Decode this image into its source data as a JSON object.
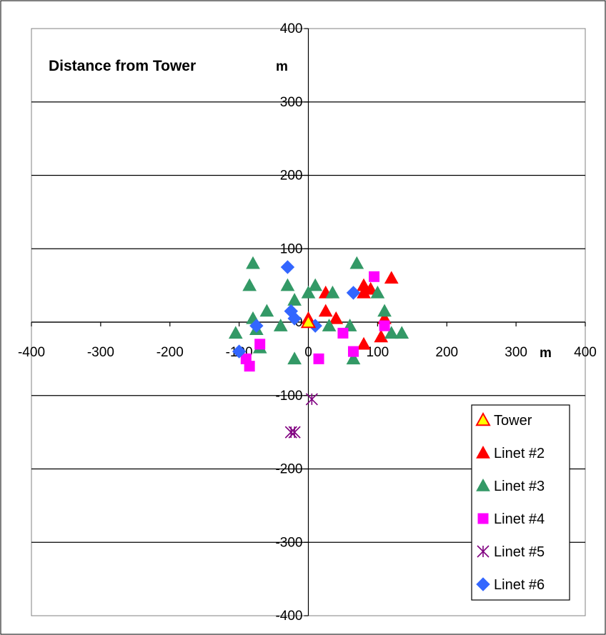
{
  "chart_data": {
    "type": "scatter",
    "title": "Distance from Tower",
    "xlabel": "m",
    "ylabel": "m",
    "xlim": [
      -400,
      400
    ],
    "ylim": [
      -400,
      400
    ],
    "x_ticks": [
      -400,
      -300,
      -200,
      -100,
      0,
      100,
      200,
      300,
      400
    ],
    "x_tick_labels": [
      "-400",
      "-300",
      "-200",
      "-100",
      "0",
      "100",
      "200",
      "300",
      "400"
    ],
    "y_ticks": [
      400,
      300,
      200,
      100,
      0,
      -100,
      -200,
      -300,
      -400
    ],
    "y_tick_labels": [
      "400",
      "300",
      "200",
      "100",
      "0",
      "-100",
      "-200",
      "-300",
      "-400"
    ],
    "grid": "horizontal major gridlines",
    "legend_position": "bottom-right",
    "series": [
      {
        "name": "Tower",
        "marker": "triangle-open",
        "color": "#ffff00",
        "stroke": "#ff0000",
        "points": [
          [
            0,
            0
          ]
        ]
      },
      {
        "name": "Linet #2",
        "marker": "triangle",
        "color": "#ff0000",
        "stroke": "#ff0000",
        "points": [
          [
            0,
            5
          ],
          [
            25,
            40
          ],
          [
            25,
            15
          ],
          [
            40,
            5
          ],
          [
            80,
            50
          ],
          [
            80,
            40
          ],
          [
            90,
            45
          ],
          [
            120,
            60
          ],
          [
            110,
            5
          ],
          [
            105,
            -20
          ],
          [
            80,
            -30
          ]
        ]
      },
      {
        "name": "Linet #3",
        "marker": "triangle",
        "color": "#339966",
        "stroke": "#339966",
        "points": [
          [
            -80,
            80
          ],
          [
            -85,
            50
          ],
          [
            -30,
            50
          ],
          [
            -20,
            30
          ],
          [
            -60,
            15
          ],
          [
            -80,
            5
          ],
          [
            -105,
            -15
          ],
          [
            -40,
            -5
          ],
          [
            -75,
            -10
          ],
          [
            -70,
            -35
          ],
          [
            -20,
            -50
          ],
          [
            0,
            40
          ],
          [
            10,
            50
          ],
          [
            35,
            40
          ],
          [
            70,
            80
          ],
          [
            100,
            40
          ],
          [
            110,
            15
          ],
          [
            120,
            -15
          ],
          [
            135,
            -15
          ],
          [
            60,
            -5
          ],
          [
            30,
            -5
          ],
          [
            65,
            -50
          ]
        ]
      },
      {
        "name": "Linet #4",
        "marker": "square",
        "color": "#ff00ff",
        "stroke": "#ff00ff",
        "points": [
          [
            95,
            62
          ],
          [
            -70,
            -30
          ],
          [
            -90,
            -50
          ],
          [
            -85,
            -60
          ],
          [
            50,
            -15
          ],
          [
            110,
            -5
          ],
          [
            15,
            -50
          ],
          [
            65,
            -40
          ]
        ]
      },
      {
        "name": "Linet #5",
        "marker": "asterisk",
        "color": "#800080",
        "stroke": "#800080",
        "points": [
          [
            5,
            -105
          ],
          [
            -25,
            -150
          ],
          [
            -20,
            -150
          ]
        ]
      },
      {
        "name": "Linet #6",
        "marker": "diamond",
        "color": "#3366ff",
        "stroke": "#3366ff",
        "points": [
          [
            -30,
            75
          ],
          [
            -25,
            15
          ],
          [
            -20,
            5
          ],
          [
            -75,
            -5
          ],
          [
            -100,
            -40
          ],
          [
            10,
            -5
          ],
          [
            65,
            40
          ]
        ]
      }
    ]
  }
}
